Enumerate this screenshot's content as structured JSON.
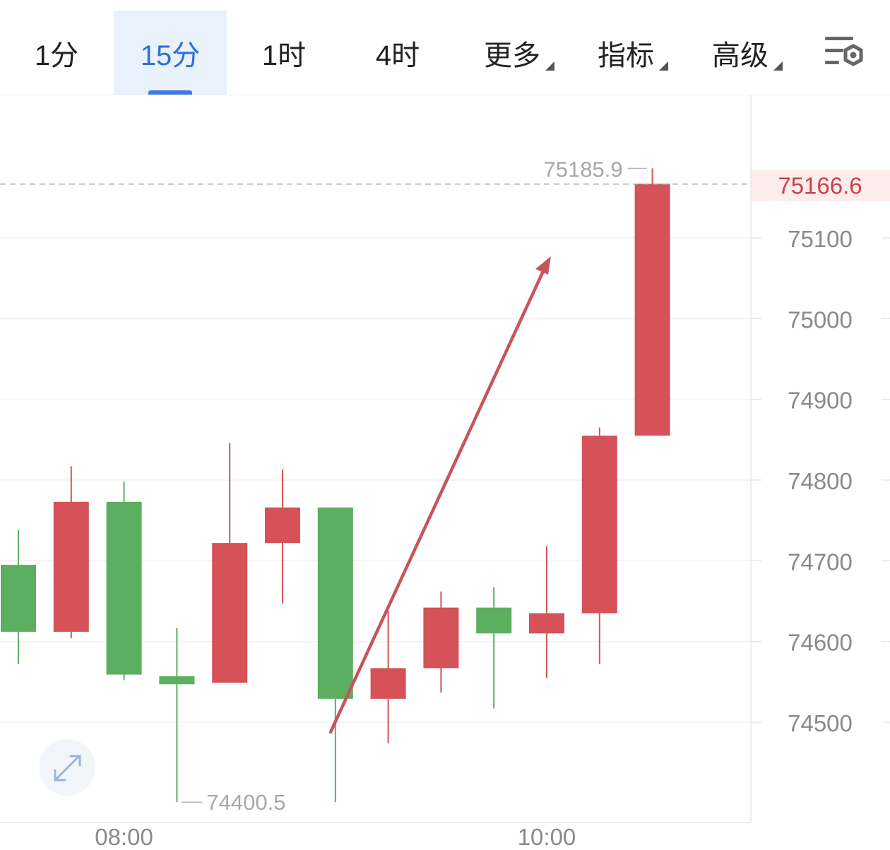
{
  "toolbar": {
    "tabs": [
      {
        "label": "1分",
        "active": false,
        "dropdown": false
      },
      {
        "label": "15分",
        "active": true,
        "dropdown": false
      },
      {
        "label": "1时",
        "active": false,
        "dropdown": false
      },
      {
        "label": "4时",
        "active": false,
        "dropdown": false
      },
      {
        "label": "更多",
        "active": false,
        "dropdown": true
      },
      {
        "label": "指标",
        "active": false,
        "dropdown": true
      },
      {
        "label": "高级",
        "active": false,
        "dropdown": true
      }
    ],
    "settings_icon": "chart-settings-icon"
  },
  "chart_data": {
    "type": "candlestick",
    "interval": "15分",
    "x_tick_labels": [
      "08:00",
      "10:00"
    ],
    "y_ticks": [
      74500,
      74600,
      74700,
      74800,
      74900,
      75000,
      75100
    ],
    "ylim": [
      74280,
      75285
    ],
    "grid": true,
    "colors": {
      "up": "#d45258",
      "down": "#5caf60",
      "last_price": "#c8444a"
    },
    "last_price": "75166.6",
    "high_label": "75185.9",
    "low_label": "74400.5",
    "candles": [
      {
        "open": 74695,
        "high": 74738,
        "low": 74572,
        "close": 74612
      },
      {
        "open": 74612,
        "high": 74817,
        "low": 74604,
        "close": 74773
      },
      {
        "open": 74773,
        "high": 74798,
        "low": 74552,
        "close": 74559
      },
      {
        "open": 74557,
        "high": 74617,
        "low": 74401,
        "close": 74547
      },
      {
        "open": 74549,
        "high": 74846,
        "low": 74549,
        "close": 74722
      },
      {
        "open": 74722,
        "high": 74813,
        "low": 74647,
        "close": 74766
      },
      {
        "open": 74766,
        "high": 74766,
        "low": 74401,
        "close": 74529
      },
      {
        "open": 74529,
        "high": 74638,
        "low": 74474,
        "close": 74567
      },
      {
        "open": 74567,
        "high": 74662,
        "low": 74537,
        "close": 74642
      },
      {
        "open": 74642,
        "high": 74667,
        "low": 74517,
        "close": 74610
      },
      {
        "open": 74610,
        "high": 74718,
        "low": 74555,
        "close": 74635
      },
      {
        "open": 74635,
        "high": 74865,
        "low": 74572,
        "close": 74855
      },
      {
        "open": 74855,
        "high": 75186,
        "low": 74855,
        "close": 75167
      }
    ]
  }
}
